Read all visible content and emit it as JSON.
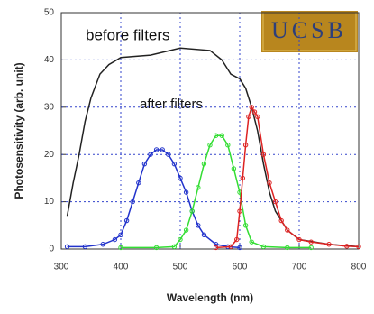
{
  "chart_data": {
    "type": "line",
    "xlabel": "Wavelength (nm)",
    "ylabel": "Photosensitivity (arb. unit)",
    "annotations": [
      "before filters",
      "after filters"
    ],
    "logo": "UCSB",
    "xlim": [
      300,
      800
    ],
    "xticks": [
      300,
      400,
      500,
      600,
      700,
      800
    ],
    "ylim": [
      0,
      50
    ],
    "yticks": [
      0,
      10,
      20,
      30,
      40,
      50
    ],
    "grid": true,
    "series": [
      {
        "color": "#222222",
        "markers": false,
        "x": [
          310,
          320,
          330,
          340,
          350,
          365,
          380,
          400,
          450,
          500,
          550,
          570,
          585,
          600,
          610,
          620,
          630,
          640,
          650,
          660,
          680,
          700,
          750,
          800
        ],
        "values": [
          7,
          14,
          20,
          27,
          32,
          37,
          39,
          40.5,
          41,
          42.5,
          42,
          40,
          37,
          36,
          34,
          30,
          25,
          18,
          12,
          8,
          4,
          2,
          1,
          0.5
        ]
      },
      {
        "color": "#2233cc",
        "markers": true,
        "x": [
          310,
          340,
          370,
          390,
          400,
          410,
          420,
          430,
          440,
          450,
          460,
          470,
          480,
          490,
          500,
          510,
          520,
          530,
          540,
          560,
          580,
          600
        ],
        "values": [
          0.5,
          0.5,
          1,
          2,
          3,
          6,
          10,
          14,
          18,
          20,
          21,
          21,
          20,
          18,
          15,
          12,
          8,
          5,
          3,
          1,
          0.5,
          0.3
        ]
      },
      {
        "color": "#33dd33",
        "markers": true,
        "x": [
          400,
          460,
          490,
          500,
          510,
          520,
          530,
          540,
          550,
          560,
          570,
          580,
          590,
          600,
          610,
          620,
          640,
          680,
          720
        ],
        "values": [
          0.3,
          0.3,
          0.5,
          2,
          4,
          8,
          13,
          18,
          22,
          24,
          24,
          22,
          17,
          12,
          5,
          1.5,
          0.5,
          0.3,
          0.3
        ]
      },
      {
        "color": "#dd2222",
        "markers": true,
        "x": [
          560,
          585,
          595,
          600,
          605,
          610,
          615,
          620,
          625,
          630,
          640,
          650,
          660,
          670,
          680,
          700,
          720,
          750,
          780,
          800
        ],
        "values": [
          0.3,
          0.5,
          2,
          8,
          15,
          22,
          28,
          30,
          29,
          28,
          20,
          14,
          10,
          6,
          4,
          2,
          1.5,
          1,
          0.6,
          0.5
        ]
      }
    ]
  }
}
